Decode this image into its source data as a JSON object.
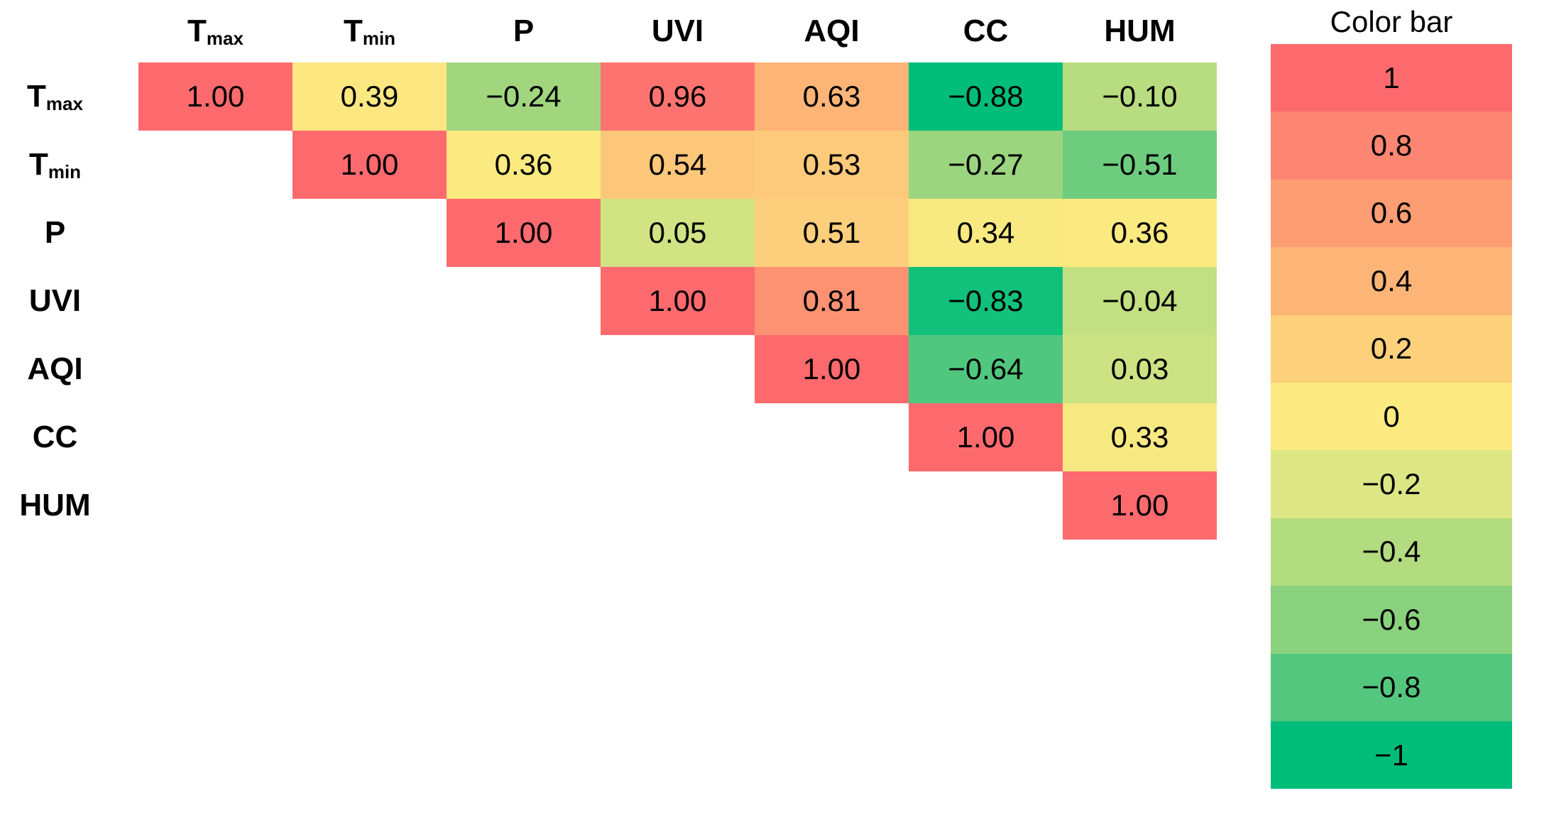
{
  "chart_data": {
    "type": "heatmap",
    "subtype": "correlation-matrix-upper-triangular",
    "variables": [
      {
        "label": "T",
        "sub": "max"
      },
      {
        "label": "T",
        "sub": "min"
      },
      {
        "label": "P",
        "sub": ""
      },
      {
        "label": "UVI",
        "sub": ""
      },
      {
        "label": "AQI",
        "sub": ""
      },
      {
        "label": "CC",
        "sub": ""
      },
      {
        "label": "HUM",
        "sub": ""
      }
    ],
    "matrix": [
      [
        1.0,
        0.39,
        -0.24,
        0.96,
        0.63,
        -0.88,
        -0.1
      ],
      [
        null,
        1.0,
        0.36,
        0.54,
        0.53,
        -0.27,
        -0.51
      ],
      [
        null,
        null,
        1.0,
        0.05,
        0.51,
        0.34,
        0.36
      ],
      [
        null,
        null,
        null,
        1.0,
        0.81,
        -0.83,
        -0.04
      ],
      [
        null,
        null,
        null,
        null,
        1.0,
        -0.64,
        0.03
      ],
      [
        null,
        null,
        null,
        null,
        null,
        1.0,
        0.33
      ],
      [
        null,
        null,
        null,
        null,
        null,
        null,
        1.0
      ]
    ],
    "colorbar": {
      "title": "Color bar",
      "ticks": [
        "1",
        "0.8",
        "0.6",
        "0.4",
        "0.2",
        "0",
        "−0.2",
        "−0.4",
        "−0.6",
        "−0.8",
        "−1"
      ],
      "tick_values": [
        1,
        0.8,
        0.6,
        0.4,
        0.2,
        0,
        -0.2,
        -0.4,
        -0.6,
        -0.8,
        -1
      ],
      "colors": [
        "#FD6A6E",
        "#FD8672",
        "#FD9D74",
        "#FDB577",
        "#FDD07C",
        "#FDEA80",
        "#DDE684",
        "#B3DB80",
        "#8AD17E",
        "#54C77E",
        "#00BE7A"
      ],
      "position": "right"
    },
    "cell_color_anchors": {
      "max": 1.0,
      "mid": 0.375,
      "min": -0.88
    },
    "value_text_color": "#000000",
    "background": "#FFFFFF"
  }
}
